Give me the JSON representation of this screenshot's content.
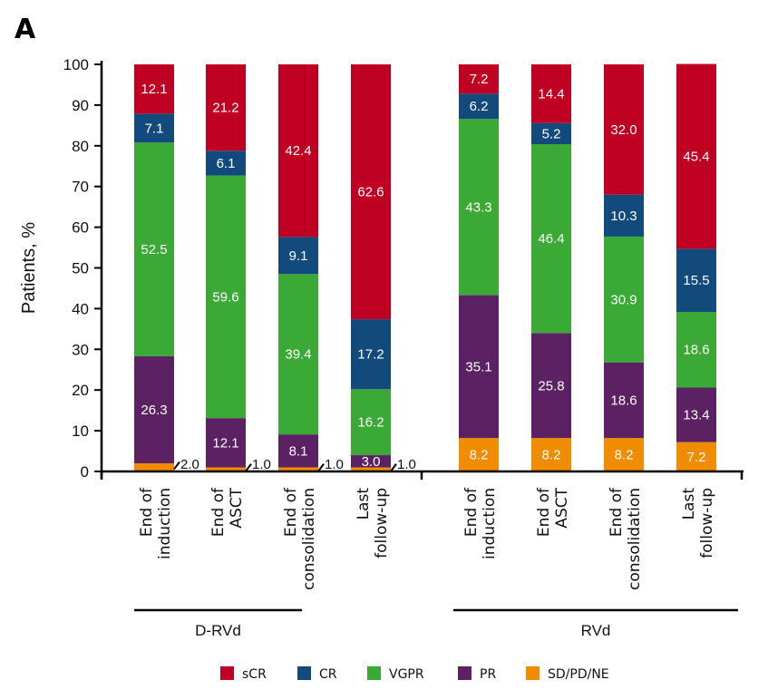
{
  "panel_label": "A",
  "chart_data": {
    "type": "bar",
    "stacked": true,
    "title": "",
    "ylabel": "Patients, %",
    "xlabel": "",
    "ylim": [
      0,
      100
    ],
    "yticks": [
      0,
      10,
      20,
      30,
      40,
      50,
      60,
      70,
      80,
      90,
      100
    ],
    "grid": false,
    "legend_position": "bottom",
    "groups": [
      {
        "name": "D-RVd",
        "categories": [
          "End of induction",
          "End of ASCT",
          "End of consolidation",
          "Last follow-up"
        ]
      },
      {
        "name": "RVd",
        "categories": [
          "End of induction",
          "End of ASCT",
          "End of consolidation",
          "Last follow-up"
        ]
      }
    ],
    "category_label_lines": [
      [
        "End of",
        "induction"
      ],
      [
        "End of",
        "ASCT"
      ],
      [
        "End of",
        "consolidation"
      ],
      [
        "Last",
        "follow-up"
      ]
    ],
    "series": [
      {
        "name": "SD/PD/NE",
        "color": "#f08c00",
        "values": [
          2.0,
          1.0,
          1.0,
          1.0,
          8.2,
          8.2,
          8.2,
          7.2
        ]
      },
      {
        "name": "PR",
        "color": "#5b2162",
        "values": [
          26.3,
          12.1,
          8.1,
          3.0,
          35.1,
          25.8,
          18.6,
          13.4
        ]
      },
      {
        "name": "VGPR",
        "color": "#3aa935",
        "values": [
          52.5,
          59.6,
          39.4,
          16.2,
          43.3,
          46.4,
          30.9,
          18.6
        ]
      },
      {
        "name": "CR",
        "color": "#124a7c",
        "values": [
          7.1,
          6.1,
          9.1,
          17.2,
          6.2,
          5.2,
          10.3,
          15.5
        ]
      },
      {
        "name": "sCR",
        "color": "#c00022",
        "values": [
          12.1,
          21.2,
          42.4,
          62.6,
          7.2,
          14.4,
          32.0,
          45.4
        ]
      }
    ],
    "data_labels": [
      [
        "2.0",
        "26.3",
        "52.5",
        "7.1",
        "12.1"
      ],
      [
        "1.0",
        "12.1",
        "59.6",
        "6.1",
        "21.2"
      ],
      [
        "1.0",
        "8.1",
        "39.4",
        "9.1",
        "42.4"
      ],
      [
        "1.0",
        "3.0",
        "16.2",
        "17.2",
        "62.6"
      ],
      [
        "8.2",
        "35.1",
        "43.3",
        "6.2",
        "7.2"
      ],
      [
        "8.2",
        "25.8",
        "46.4",
        "5.2",
        "14.4"
      ],
      [
        "8.2",
        "18.6",
        "30.9",
        "10.3",
        "32.0"
      ],
      [
        "7.2",
        "13.4",
        "18.6",
        "15.5",
        "45.4"
      ]
    ],
    "legend_order": [
      "sCR",
      "CR",
      "VGPR",
      "PR",
      "SD/PD/NE"
    ]
  }
}
